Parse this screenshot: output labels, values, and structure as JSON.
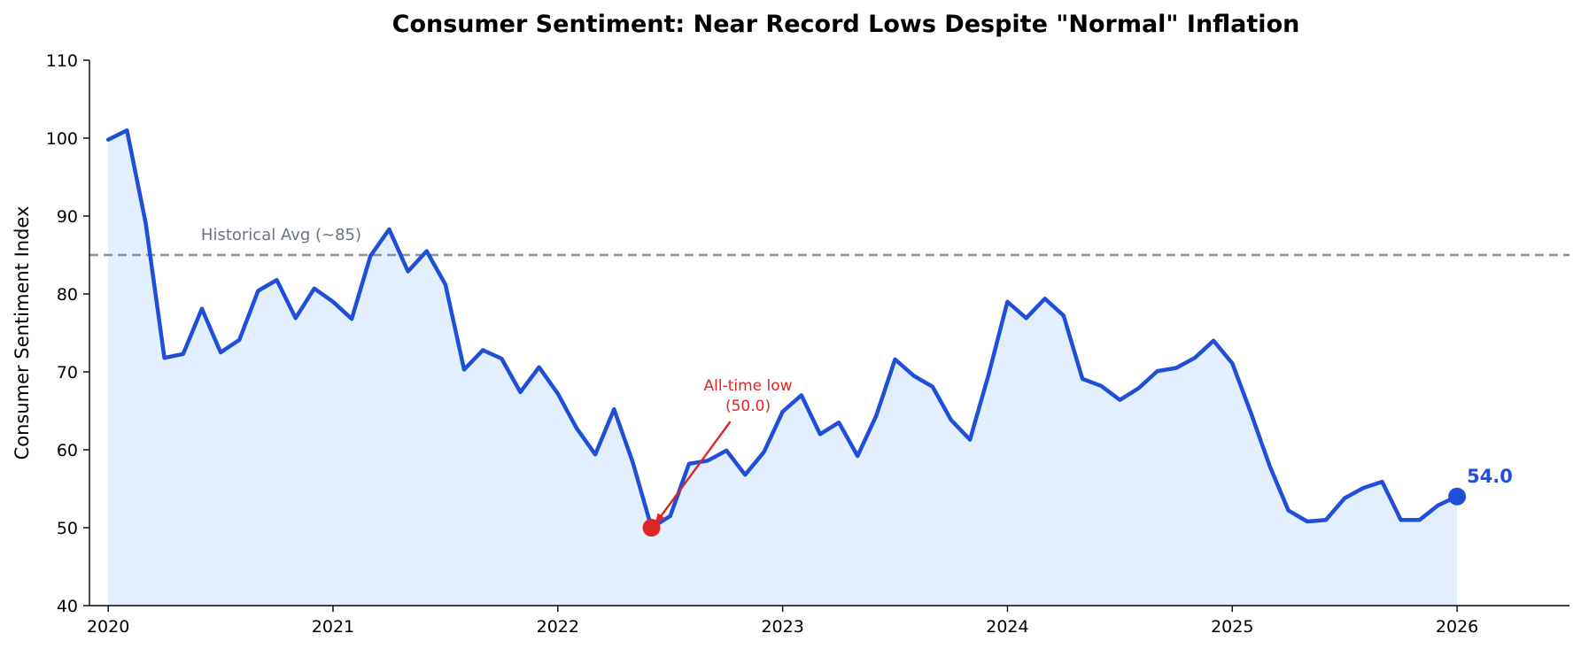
{
  "chart_data": {
    "type": "area",
    "title": "Consumer Sentiment: Near Record Lows Despite \"Normal\" Inflation",
    "xlabel": "",
    "ylabel": "Consumer Sentiment Index",
    "xlim": [
      "2019-12",
      "2026-07"
    ],
    "ylim": [
      40,
      110
    ],
    "y_ticks": [
      "40",
      "50",
      "60",
      "70",
      "80",
      "90",
      "100",
      "110"
    ],
    "x_ticks": [
      "2020",
      "2021",
      "2022",
      "2023",
      "2024",
      "2025",
      "2026"
    ],
    "grid": false,
    "colors": {
      "line": "#1f4fd8",
      "fill": "#e3efff",
      "reference": "#8a8f9c",
      "reference_label": "#6b7280",
      "low": "#dc2626",
      "end": "#1f4fd8"
    },
    "series": [
      {
        "x": [
          "2020-01",
          "2020-02",
          "2020-03",
          "2020-04",
          "2020-05",
          "2020-06",
          "2020-07",
          "2020-08",
          "2020-09",
          "2020-10",
          "2020-11",
          "2020-12",
          "2021-01",
          "2021-02",
          "2021-03",
          "2021-04",
          "2021-05",
          "2021-06",
          "2021-07",
          "2021-08",
          "2021-09",
          "2021-10",
          "2021-11",
          "2021-12",
          "2022-01",
          "2022-02",
          "2022-03",
          "2022-04",
          "2022-05",
          "2022-06",
          "2022-07",
          "2022-08",
          "2022-09",
          "2022-10",
          "2022-11",
          "2022-12",
          "2023-01",
          "2023-02",
          "2023-03",
          "2023-04",
          "2023-05",
          "2023-06",
          "2023-07",
          "2023-08",
          "2023-09",
          "2023-10",
          "2023-11",
          "2023-12",
          "2024-01",
          "2024-02",
          "2024-03",
          "2024-04",
          "2024-05",
          "2024-06",
          "2024-07",
          "2024-08",
          "2024-09",
          "2024-10",
          "2024-11",
          "2024-12",
          "2025-01",
          "2025-02",
          "2025-03",
          "2025-04",
          "2025-05",
          "2025-06",
          "2025-07",
          "2025-08",
          "2025-09",
          "2025-10",
          "2025-11",
          "2025-12",
          "2026-01"
        ],
        "values": [
          99.8,
          101.0,
          89.1,
          71.8,
          72.3,
          78.1,
          72.5,
          74.1,
          80.4,
          81.8,
          76.9,
          80.7,
          79.0,
          76.8,
          84.9,
          88.3,
          82.9,
          85.5,
          81.2,
          70.3,
          72.8,
          71.7,
          67.4,
          70.6,
          67.2,
          62.8,
          59.4,
          65.2,
          58.4,
          50.0,
          51.5,
          58.2,
          58.6,
          59.9,
          56.8,
          59.7,
          64.9,
          67.0,
          62.0,
          63.5,
          59.2,
          64.4,
          71.6,
          69.5,
          68.1,
          63.8,
          61.3,
          69.7,
          79.0,
          76.9,
          79.4,
          77.2,
          69.1,
          68.2,
          66.4,
          67.9,
          70.1,
          70.5,
          71.8,
          74.0,
          71.1,
          64.7,
          57.9,
          52.2,
          50.8,
          51.0,
          53.8,
          55.1,
          55.9,
          51.0,
          51.0,
          52.9,
          54.0
        ]
      }
    ],
    "reference_line": {
      "value": 85,
      "label": "Historical Avg (~85)"
    },
    "annotations": [
      {
        "x": "2022-06",
        "y": 50.0,
        "text_line1": "All-time low",
        "text_line2": "(50.0)"
      },
      {
        "x": "2026-01",
        "y": 54.0,
        "text": "54.0"
      }
    ]
  }
}
